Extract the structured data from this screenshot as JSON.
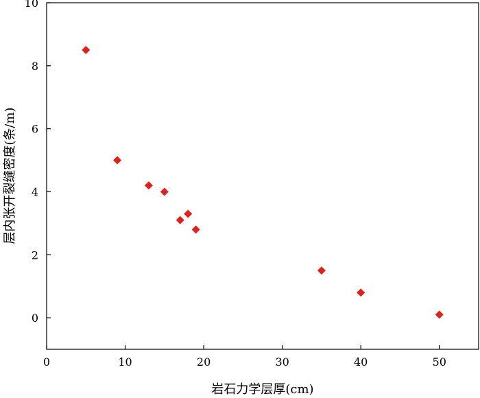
{
  "chart_data": {
    "type": "scatter",
    "xlabel": "岩石力学层厚(cm)",
    "ylabel": "层内张开裂缝密度(条/m)",
    "xlim": [
      0,
      55
    ],
    "ylim": [
      -1,
      10
    ],
    "xticks": [
      0,
      10,
      20,
      30,
      40,
      50
    ],
    "yticks": [
      0,
      2,
      4,
      6,
      8,
      10
    ],
    "marker": "diamond",
    "marker_color": "#e0201a",
    "grid": false,
    "series": [
      {
        "x": [
          5,
          9,
          13,
          15,
          17,
          18,
          19,
          35,
          40,
          50
        ],
        "y": [
          8.5,
          5.0,
          4.2,
          4.0,
          3.1,
          3.3,
          2.8,
          1.5,
          0.8,
          0.1
        ]
      }
    ]
  }
}
